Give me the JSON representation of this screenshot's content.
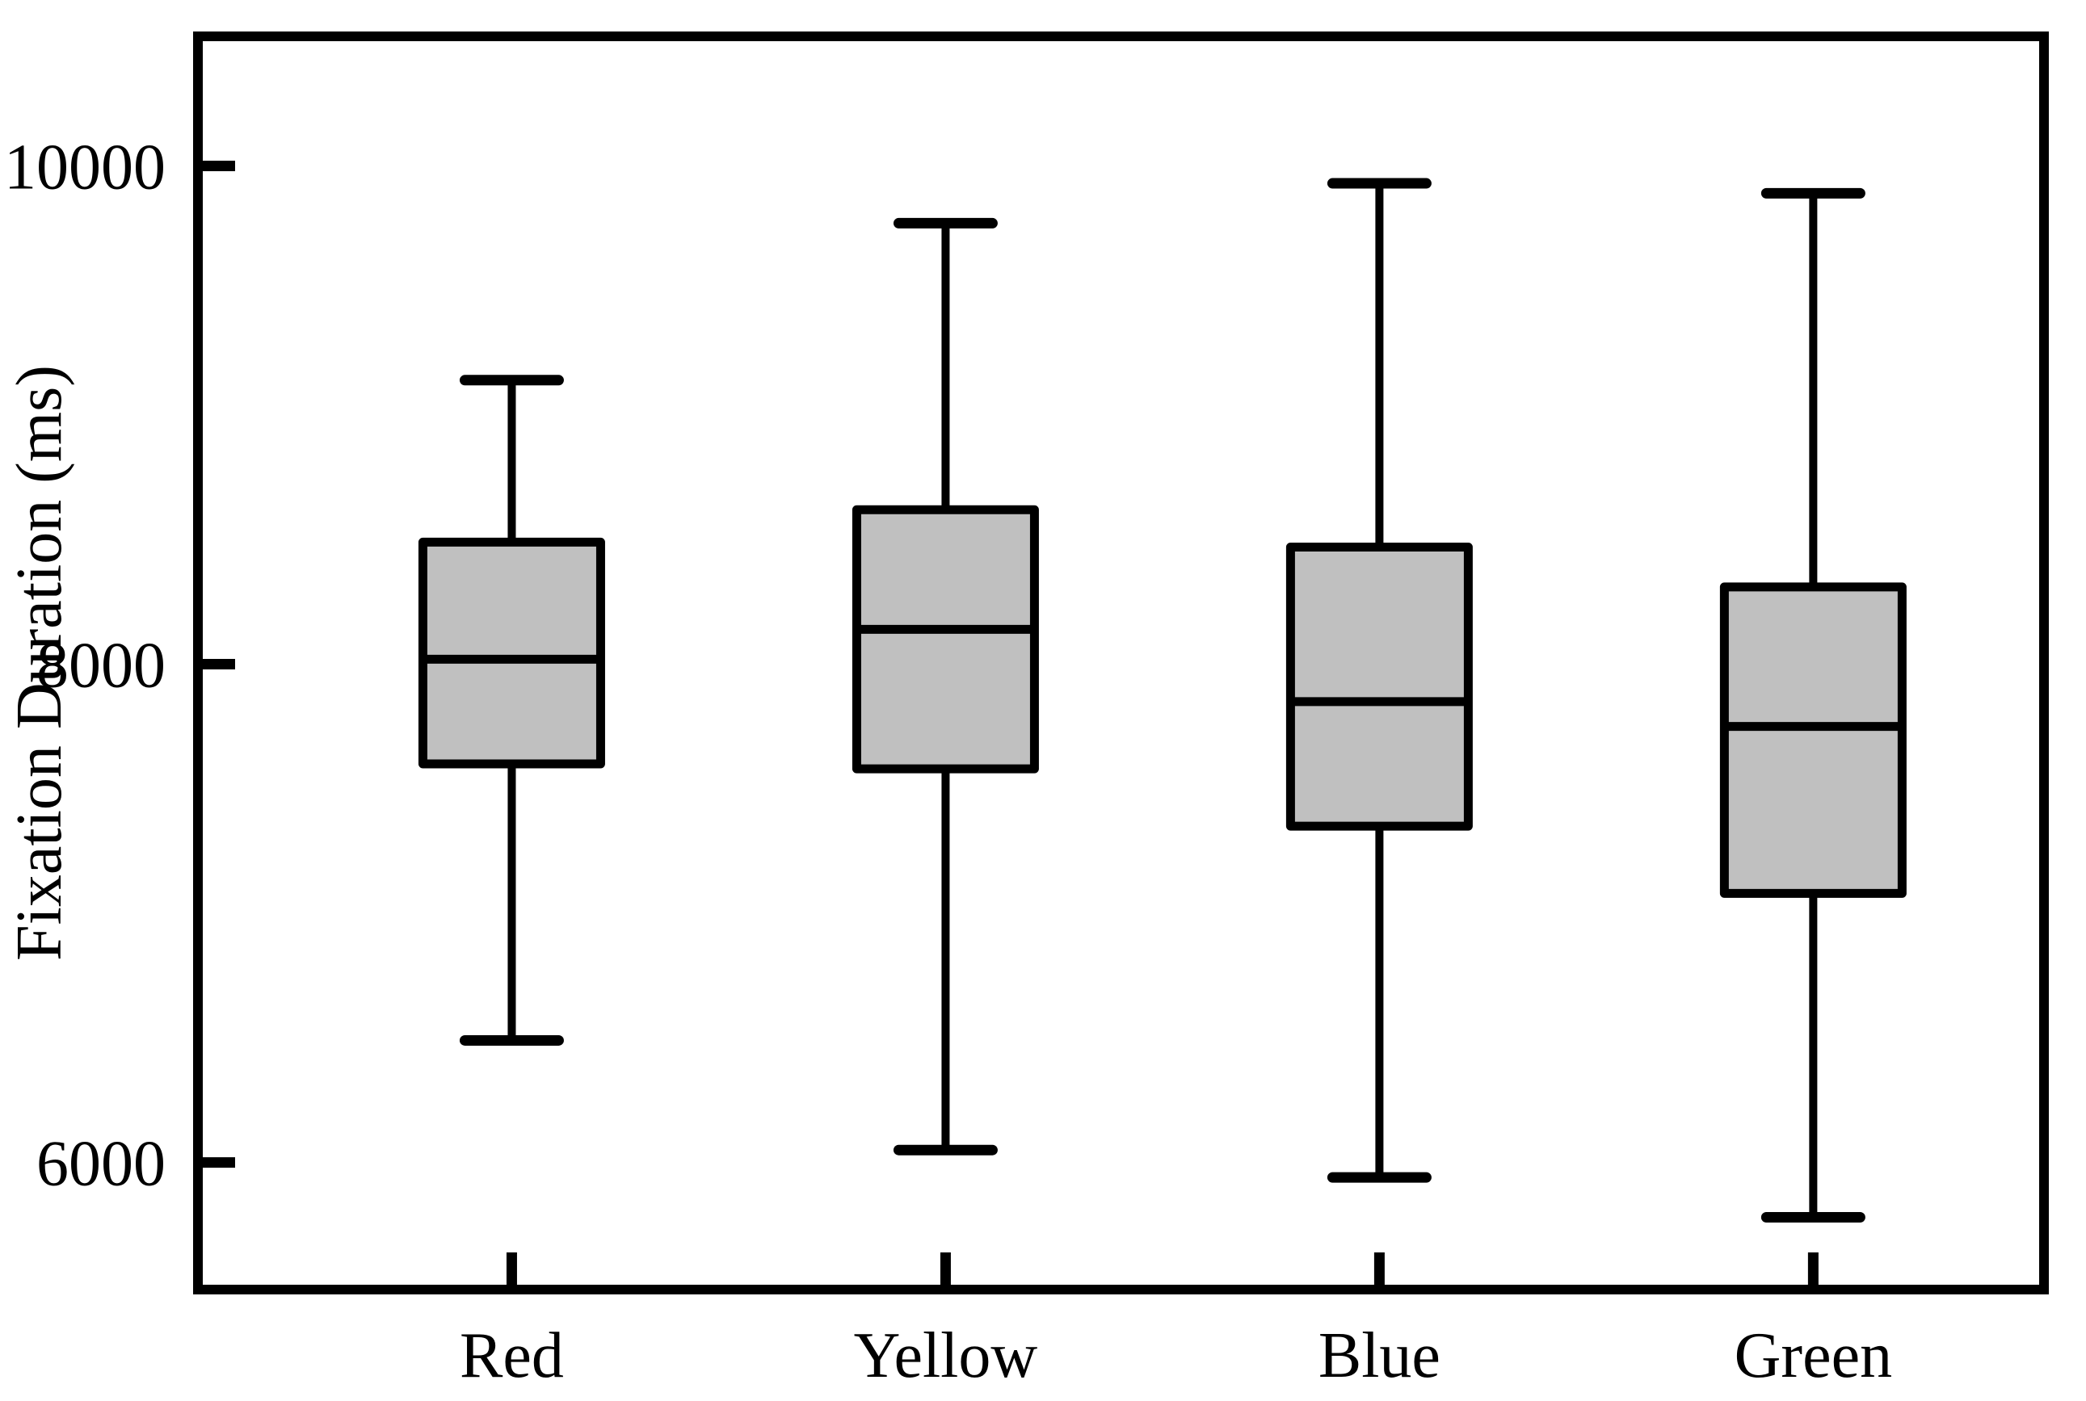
{
  "figure": {
    "kind": "box-and-whisker plot",
    "background": "#ffffff",
    "frame_color": "#000000"
  },
  "chart_data": {
    "type": "boxplot",
    "title": "",
    "xlabel": "",
    "ylabel": "Fixation Duration (ms)",
    "categories": [
      "Red",
      "Yellow",
      "Blue",
      "Green"
    ],
    "yticks": [
      6000,
      8000,
      10000
    ],
    "ytick_labels": [
      "6000",
      "8000",
      "10000"
    ],
    "ylim": [
      5490,
      10520
    ],
    "grid": false,
    "legend": "none",
    "box_fill": "#c0c0c0",
    "line_color": "#000000",
    "series": [
      {
        "name": "Red",
        "whisker_low": 6490,
        "q1": 7600,
        "median": 8020,
        "q3": 8490,
        "whisker_high": 9140
      },
      {
        "name": "Yellow",
        "whisker_low": 6050,
        "q1": 7580,
        "median": 8140,
        "q3": 8620,
        "whisker_high": 9770
      },
      {
        "name": "Blue",
        "whisker_low": 5940,
        "q1": 7350,
        "median": 7850,
        "q3": 8470,
        "whisker_high": 9930
      },
      {
        "name": "Green",
        "whisker_low": 5780,
        "q1": 7080,
        "median": 7750,
        "q3": 8310,
        "whisker_high": 9890
      }
    ]
  }
}
